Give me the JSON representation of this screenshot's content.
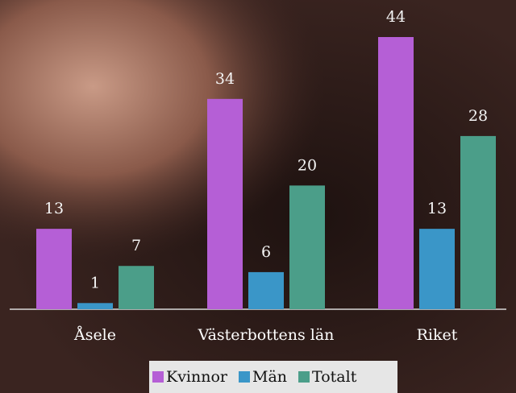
{
  "chart_data": {
    "type": "bar",
    "categories": [
      "Åsele",
      "Västerbottens län",
      "Riket"
    ],
    "series": [
      {
        "name": "Kvinnor",
        "color": "#b55fd6",
        "values": [
          13,
          34,
          44
        ]
      },
      {
        "name": "Män",
        "color": "#3a96c8",
        "values": [
          1,
          6,
          13
        ]
      },
      {
        "name": "Totalt",
        "color": "#4b9e89",
        "values": [
          7,
          20,
          28
        ]
      }
    ],
    "legend": "bottom"
  }
}
